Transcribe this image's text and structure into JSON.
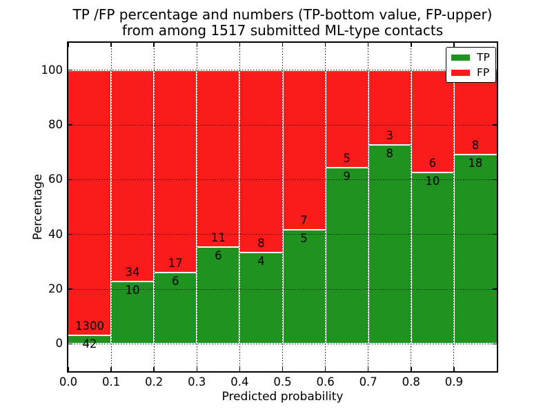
{
  "title": {
    "line1": "TP /FP percentage and numbers (TP-bottom value, FP-upper)",
    "line2": "from among 1517 submitted ML-type contacts"
  },
  "axes": {
    "xlabel": "Predicted probability",
    "ylabel": "Percentage",
    "ytick_labels": [
      "0",
      "20",
      "40",
      "60",
      "80",
      "100"
    ],
    "xtick_labels": [
      "0.0",
      "0.1",
      "0.2",
      "0.3",
      "0.4",
      "0.5",
      "0.6",
      "0.7",
      "0.8",
      "0.9"
    ]
  },
  "legend": {
    "entries": [
      {
        "label": "TP",
        "color_key": "tp"
      },
      {
        "label": "FP",
        "color_key": "fp"
      }
    ],
    "position": "upper right"
  },
  "colors": {
    "tp": "#1f9220",
    "fp": "#fb1b1b",
    "grid": "#000000",
    "background": "#ffffff",
    "bar_edge": "#ffffff"
  },
  "chart_data": {
    "type": "bar",
    "stacked": true,
    "normalized_to_percent": true,
    "title": "TP /FP percentage and numbers (TP-bottom value, FP-upper) from among 1517 submitted ML-type contacts",
    "xlabel": "Predicted probability",
    "ylabel": "Percentage",
    "total_contacts": 1517,
    "bin_edges": [
      0.0,
      0.1,
      0.2,
      0.3,
      0.4,
      0.5,
      0.6,
      0.7,
      0.8,
      0.9,
      1.0
    ],
    "series": [
      {
        "name": "TP",
        "counts": [
          42,
          10,
          6,
          6,
          4,
          5,
          9,
          8,
          10,
          18
        ],
        "percent": [
          3.1,
          22.7,
          26.1,
          35.3,
          33.3,
          41.7,
          64.3,
          72.7,
          62.5,
          69.2
        ]
      },
      {
        "name": "FP",
        "counts": [
          1300,
          34,
          17,
          11,
          8,
          7,
          5,
          3,
          6,
          8
        ],
        "percent": [
          96.9,
          77.3,
          73.9,
          64.7,
          66.7,
          58.3,
          35.7,
          27.3,
          37.5,
          30.8
        ]
      }
    ],
    "bar_annotations": "FP count above segment boundary, TP count below segment boundary",
    "xlim": [
      0.0,
      1.0
    ],
    "ylim": [
      -10,
      110
    ],
    "yticks": [
      0,
      20,
      40,
      60,
      80,
      100
    ],
    "xticks": [
      0.0,
      0.1,
      0.2,
      0.3,
      0.4,
      0.5,
      0.6,
      0.7,
      0.8,
      0.9
    ],
    "grid": "dotted",
    "legend_position": "upper right"
  }
}
